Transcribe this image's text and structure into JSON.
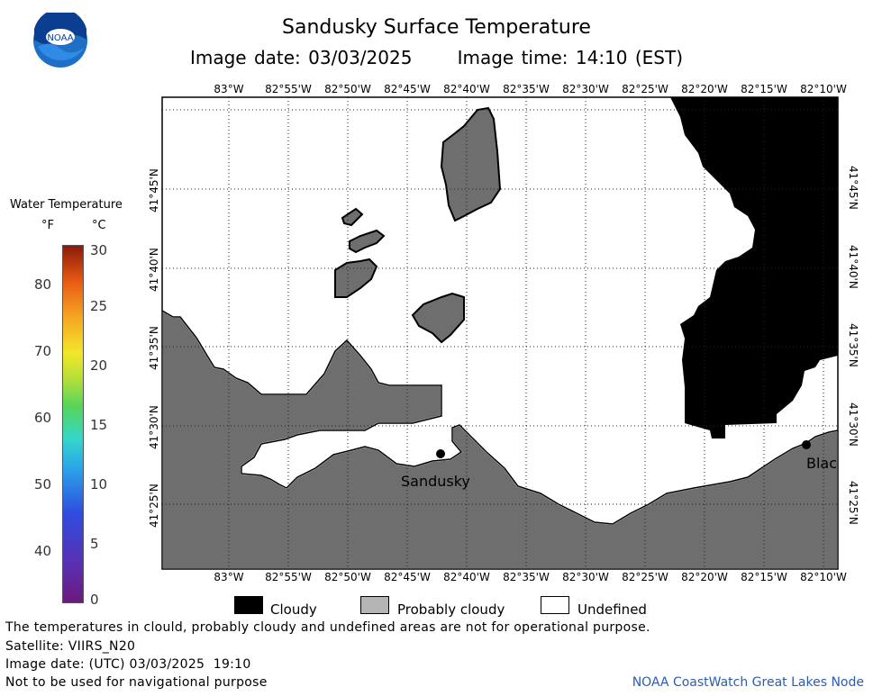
{
  "title": "Sandusky Surface Temperature",
  "subtitle_date": "Image date: 03/03/2025",
  "subtitle_time": "Image time: 14:10 (EST)",
  "logo_text": "NOAA",
  "lon_labels": [
    "83°W",
    "82°55'W",
    "82°50'W",
    "82°45'W",
    "82°40'W",
    "82°35'W",
    "82°30'W",
    "82°25'W",
    "82°20'W",
    "82°15'W",
    "82°10'W"
  ],
  "lat_labels": [
    "41°45'N",
    "41°40'N",
    "41°35'N",
    "41°30'N",
    "41°25'N"
  ],
  "colorbar": {
    "title": "Water Temperature",
    "unit_f": "°F",
    "unit_c": "°C",
    "f_ticks": [
      "80",
      "70",
      "60",
      "50",
      "40"
    ],
    "c_ticks": [
      "30",
      "25",
      "20",
      "15",
      "10",
      "5",
      "0"
    ]
  },
  "places": [
    {
      "name": "Sandusky"
    },
    {
      "name": "Blac"
    }
  ],
  "legend": {
    "cloudy": "Cloudy",
    "probably_cloudy": "Probably cloudy",
    "undefined": "Undefined"
  },
  "footer": {
    "disclaimer": "The temperatures in clould, probably cloudy and undefined areas are not for operational purpose.",
    "satellite": "Satellite: VIIRS_N20",
    "utc_date": "Image date: (UTC) 03/03/2025  19:10",
    "nav_warning": "Not to be used for navigational purpose",
    "credit": "NOAA CoastWatch Great Lakes Node"
  },
  "colors": {
    "land": "#6e6e6e",
    "cloudy": "#000000",
    "probably_cloudy": "#b4b4b4",
    "undefined": "#ffffff"
  }
}
